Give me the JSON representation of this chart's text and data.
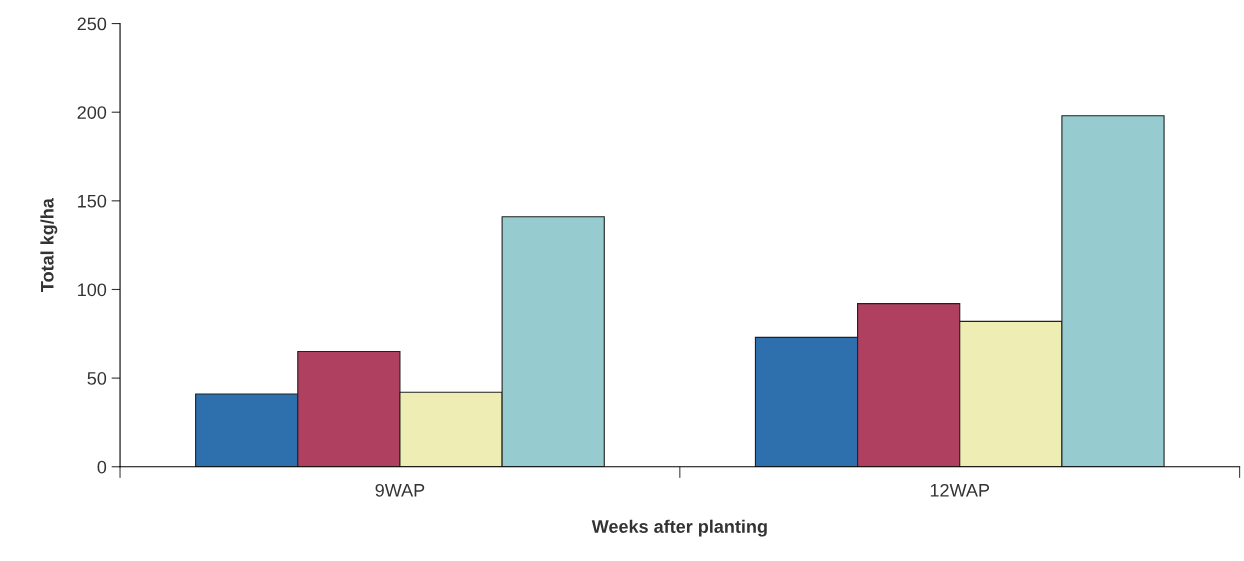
{
  "chart_data": {
    "type": "bar",
    "xlabel": "Weeks after planting",
    "ylabel": "Total kg/ha",
    "categories": [
      "9WAP",
      "12WAP"
    ],
    "series": [
      {
        "color": "#2e6fad",
        "values": [
          41,
          73
        ]
      },
      {
        "color": "#b04060",
        "values": [
          65,
          92
        ]
      },
      {
        "color": "#eeeeb4",
        "values": [
          42,
          82
        ]
      },
      {
        "color": "#96cbd0",
        "values": [
          141,
          198
        ]
      }
    ],
    "ylim": [
      0,
      250
    ],
    "yticks": [
      0,
      50,
      100,
      150,
      200,
      250
    ],
    "grid": false,
    "legend": false
  }
}
